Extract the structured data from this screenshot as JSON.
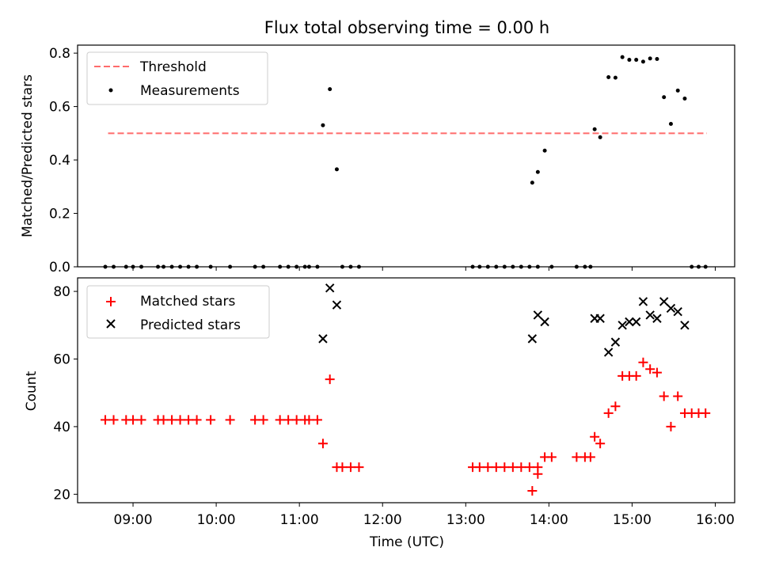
{
  "chart_data": [
    {
      "type": "scatter",
      "title": "Flux total observing time = 0.00 h",
      "xlabel": "",
      "ylabel": "Matched/Predicted stars",
      "xlim": [
        "08:20",
        "16:14"
      ],
      "ylim": [
        0,
        0.83
      ],
      "yticks": [
        0.0,
        0.2,
        0.4,
        0.6,
        0.8
      ],
      "ytick_labels": [
        "0.0",
        "0.2",
        "0.4",
        "0.6",
        "0.8"
      ],
      "grid": false,
      "legend_position": "top-left",
      "threshold": {
        "name": "Threshold",
        "y": 0.5,
        "x_start": "08:42",
        "x_end": "15:54",
        "color": "#ff6b6b"
      },
      "series": [
        {
          "name": "Measurements",
          "color": "#000000",
          "marker": "dot",
          "points": [
            [
              "08:40",
              0
            ],
            [
              "08:46",
              0
            ],
            [
              "08:55",
              0
            ],
            [
              "09:00",
              0
            ],
            [
              "09:06",
              0
            ],
            [
              "09:18",
              0
            ],
            [
              "09:22",
              0
            ],
            [
              "09:28",
              0
            ],
            [
              "09:34",
              0
            ],
            [
              "09:40",
              0
            ],
            [
              "09:46",
              0
            ],
            [
              "09:56",
              0
            ],
            [
              "10:10",
              0
            ],
            [
              "10:28",
              0
            ],
            [
              "10:34",
              0
            ],
            [
              "10:46",
              0
            ],
            [
              "10:52",
              0
            ],
            [
              "10:58",
              0
            ],
            [
              "11:04",
              0
            ],
            [
              "11:07",
              0
            ],
            [
              "11:13",
              0
            ],
            [
              "11:17",
              0.53
            ],
            [
              "11:22",
              0.665
            ],
            [
              "11:27",
              0.365
            ],
            [
              "11:31",
              0
            ],
            [
              "11:37",
              0
            ],
            [
              "11:43",
              0
            ],
            [
              "13:05",
              0
            ],
            [
              "13:10",
              0
            ],
            [
              "13:16",
              0
            ],
            [
              "13:22",
              0
            ],
            [
              "13:28",
              0
            ],
            [
              "13:34",
              0
            ],
            [
              "13:40",
              0
            ],
            [
              "13:46",
              0
            ],
            [
              "13:52",
              0
            ],
            [
              "13:48",
              0.315
            ],
            [
              "13:52",
              0.355
            ],
            [
              "13:57",
              0.435
            ],
            [
              "14:02",
              0
            ],
            [
              "14:20",
              0
            ],
            [
              "14:26",
              0
            ],
            [
              "14:30",
              0
            ],
            [
              "14:33",
              0.515
            ],
            [
              "14:37",
              0.485
            ],
            [
              "14:43",
              0.71
            ],
            [
              "14:48",
              0.708
            ],
            [
              "14:53",
              0.785
            ],
            [
              "14:58",
              0.775
            ],
            [
              "15:03",
              0.775
            ],
            [
              "15:08",
              0.768
            ],
            [
              "15:13",
              0.78
            ],
            [
              "15:18",
              0.778
            ],
            [
              "15:23",
              0.635
            ],
            [
              "15:28",
              0.535
            ],
            [
              "15:33",
              0.66
            ],
            [
              "15:38",
              0.63
            ],
            [
              "15:43",
              0
            ],
            [
              "15:48",
              0
            ],
            [
              "15:53",
              0
            ]
          ]
        }
      ]
    },
    {
      "type": "scatter",
      "title": "",
      "xlabel": "Time (UTC)",
      "ylabel": "Count",
      "xlim": [
        "08:20",
        "16:14"
      ],
      "ylim": [
        17.5,
        84
      ],
      "yticks": [
        20,
        40,
        60,
        80
      ],
      "ytick_labels": [
        "20",
        "40",
        "60",
        "80"
      ],
      "xtick_labels": [
        "09:00",
        "10:00",
        "11:00",
        "12:00",
        "13:00",
        "14:00",
        "15:00",
        "16:00"
      ],
      "xticks": [
        "09:00",
        "10:00",
        "11:00",
        "12:00",
        "13:00",
        "14:00",
        "15:00",
        "16:00"
      ],
      "grid": false,
      "legend_position": "top-left",
      "series": [
        {
          "name": "Matched stars",
          "color": "#ff0000",
          "marker": "plus",
          "points": [
            [
              "08:40",
              42
            ],
            [
              "08:46",
              42
            ],
            [
              "08:55",
              42
            ],
            [
              "09:00",
              42
            ],
            [
              "09:06",
              42
            ],
            [
              "09:18",
              42
            ],
            [
              "09:22",
              42
            ],
            [
              "09:28",
              42
            ],
            [
              "09:34",
              42
            ],
            [
              "09:40",
              42
            ],
            [
              "09:46",
              42
            ],
            [
              "09:56",
              42
            ],
            [
              "10:10",
              42
            ],
            [
              "10:28",
              42
            ],
            [
              "10:34",
              42
            ],
            [
              "10:46",
              42
            ],
            [
              "10:52",
              42
            ],
            [
              "10:58",
              42
            ],
            [
              "11:04",
              42
            ],
            [
              "11:07",
              42
            ],
            [
              "11:13",
              42
            ],
            [
              "11:17",
              35
            ],
            [
              "11:22",
              54
            ],
            [
              "11:27",
              28
            ],
            [
              "11:31",
              28
            ],
            [
              "11:37",
              28
            ],
            [
              "11:43",
              28
            ],
            [
              "13:05",
              28
            ],
            [
              "13:10",
              28
            ],
            [
              "13:16",
              28
            ],
            [
              "13:22",
              28
            ],
            [
              "13:28",
              28
            ],
            [
              "13:34",
              28
            ],
            [
              "13:40",
              28
            ],
            [
              "13:46",
              28
            ],
            [
              "13:52",
              28
            ],
            [
              "13:48",
              21
            ],
            [
              "13:52",
              26
            ],
            [
              "13:57",
              31
            ],
            [
              "14:02",
              31
            ],
            [
              "14:20",
              31
            ],
            [
              "14:26",
              31
            ],
            [
              "14:30",
              31
            ],
            [
              "14:33",
              37
            ],
            [
              "14:37",
              35
            ],
            [
              "14:43",
              44
            ],
            [
              "14:48",
              46
            ],
            [
              "14:53",
              55
            ],
            [
              "14:58",
              55
            ],
            [
              "15:03",
              55
            ],
            [
              "15:08",
              59
            ],
            [
              "15:13",
              57
            ],
            [
              "15:18",
              56
            ],
            [
              "15:23",
              49
            ],
            [
              "15:28",
              40
            ],
            [
              "15:33",
              49
            ],
            [
              "15:38",
              44
            ],
            [
              "15:43",
              44
            ],
            [
              "15:48",
              44
            ],
            [
              "15:53",
              44
            ]
          ]
        },
        {
          "name": "Predicted stars",
          "color": "#000000",
          "marker": "x",
          "points": [
            [
              "11:17",
              66
            ],
            [
              "11:22",
              81
            ],
            [
              "11:27",
              76
            ],
            [
              "13:48",
              66
            ],
            [
              "13:52",
              73
            ],
            [
              "13:57",
              71
            ],
            [
              "14:33",
              72
            ],
            [
              "14:37",
              72
            ],
            [
              "14:43",
              62
            ],
            [
              "14:48",
              65
            ],
            [
              "14:53",
              70
            ],
            [
              "14:58",
              71
            ],
            [
              "15:03",
              71
            ],
            [
              "15:08",
              77
            ],
            [
              "15:13",
              73
            ],
            [
              "15:18",
              72
            ],
            [
              "15:23",
              77
            ],
            [
              "15:28",
              75
            ],
            [
              "15:33",
              74
            ],
            [
              "15:38",
              70
            ]
          ]
        }
      ]
    }
  ]
}
